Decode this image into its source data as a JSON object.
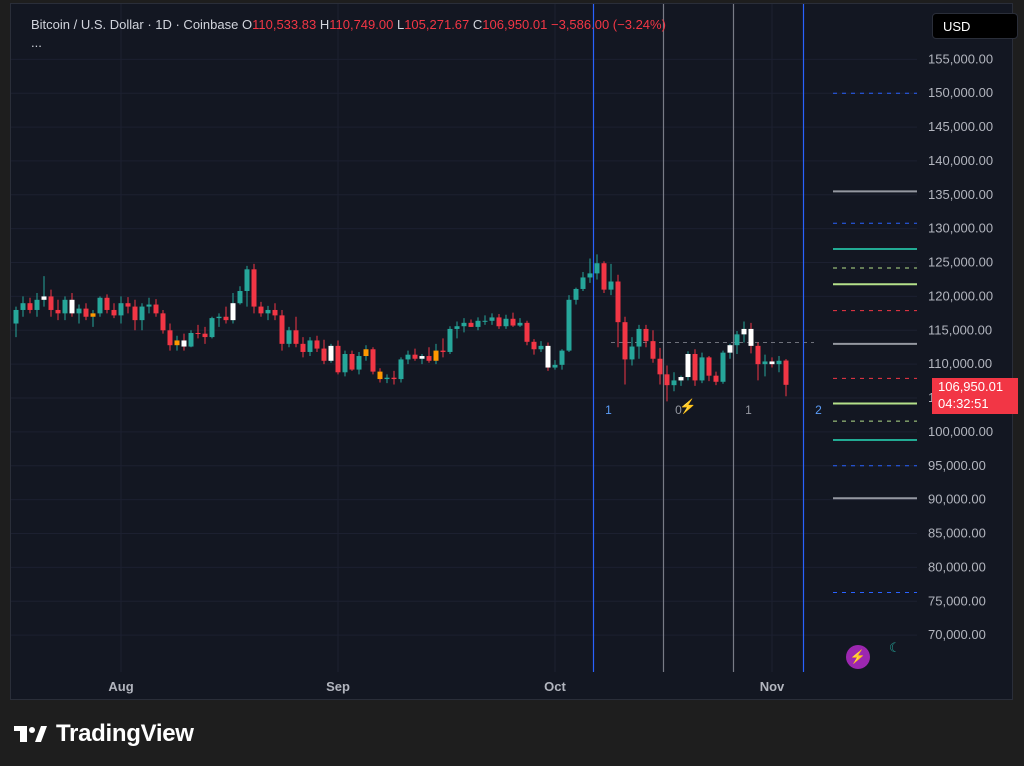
{
  "legend": {
    "symbol": "Bitcoin / U.S. Dollar · 1D · Coinbase",
    "open_label": "O",
    "open": "110,533.83",
    "high_label": "H",
    "high": "110,749.00",
    "low_label": "L",
    "low": "105,271.67",
    "close_label": "C",
    "close": "106,950.01",
    "change": "−3,586.00 (−3.24%)",
    "more": "..."
  },
  "currency": "USD",
  "price_badge": {
    "price": "106,950.01",
    "countdown": "04:32:51"
  },
  "footer": {
    "brand": "TradingView"
  },
  "icons": {
    "lightning": "lightning-icon",
    "moon": "moon-icon",
    "event_badge": "event-badge-icon"
  },
  "colors": {
    "up": "#26a69a",
    "down": "#f23645",
    "background": "#131722",
    "grid": "#1c2030",
    "text": "#b2b5be",
    "blue_line": "#2962ff",
    "gray_line": "#787b86",
    "orange": "#ff9800",
    "white_candle": "#ffffff",
    "lime": "#b4e08a",
    "teal": "#22ab94"
  },
  "chart_data": {
    "type": "candlestick",
    "title": "Bitcoin / U.S. Dollar · 1D · Coinbase",
    "xlabel": "",
    "ylabel": "",
    "ylim": [
      65000,
      158000
    ],
    "grid": true,
    "x_tick_labels": [
      "Aug",
      "Sep",
      "Oct",
      "Nov"
    ],
    "x_tick_index": [
      15,
      46,
      77,
      108
    ],
    "y_ticks": [
      70000,
      75000,
      80000,
      85000,
      90000,
      95000,
      100000,
      105000,
      110000,
      115000,
      120000,
      125000,
      130000,
      135000,
      140000,
      145000,
      150000,
      155000
    ],
    "y_tick_labels": [
      "70,000.00",
      "75,000.00",
      "80,000.00",
      "85,000.00",
      "90,000.00",
      "95,000.00",
      "100,000.00",
      "105,000.00",
      "110,000.00",
      "115,000.00",
      "120,000.00",
      "125,000.00",
      "130,000.00",
      "135,000.00",
      "140,000.00",
      "145,000.00",
      "150,000.00",
      "155,000.00"
    ],
    "candles": [
      [
        116000,
        118500,
        114000,
        118000
      ],
      [
        118000,
        120000,
        117000,
        119000
      ],
      [
        119000,
        119800,
        117500,
        118000
      ],
      [
        118000,
        120500,
        117000,
        119500
      ],
      [
        119500,
        123000,
        118500,
        120000
      ],
      [
        120000,
        121000,
        117000,
        118000
      ],
      [
        118000,
        119500,
        116500,
        117500
      ],
      [
        117500,
        120000,
        116500,
        119500
      ],
      [
        119500,
        120500,
        117000,
        117500
      ],
      [
        117500,
        118800,
        116000,
        118200
      ],
      [
        118200,
        119000,
        116500,
        117000
      ],
      [
        117000,
        118000,
        115500,
        117500
      ],
      [
        117500,
        120000,
        117000,
        119800
      ],
      [
        119800,
        120300,
        117500,
        118000
      ],
      [
        118000,
        119000,
        116800,
        117200
      ],
      [
        117200,
        120000,
        116000,
        119000
      ],
      [
        119000,
        119900,
        117500,
        118500
      ],
      [
        118500,
        119500,
        115000,
        116500
      ],
      [
        116500,
        119000,
        115000,
        118500
      ],
      [
        118500,
        119800,
        117500,
        118800
      ],
      [
        118800,
        119600,
        117000,
        117500
      ],
      [
        117500,
        118000,
        114500,
        115000
      ],
      [
        115000,
        116000,
        112000,
        112800
      ],
      [
        112800,
        114200,
        112000,
        113500
      ],
      [
        113500,
        114500,
        112000,
        112600
      ],
      [
        112600,
        115000,
        112500,
        114600
      ],
      [
        114600,
        115800,
        113800,
        114500
      ],
      [
        114500,
        115500,
        113000,
        114000
      ],
      [
        114000,
        117000,
        113800,
        116800
      ],
      [
        116800,
        117500,
        115500,
        117000
      ],
      [
        117000,
        118500,
        116000,
        116500
      ],
      [
        116500,
        120500,
        116000,
        119000
      ],
      [
        119000,
        121500,
        118800,
        120800
      ],
      [
        120800,
        124500,
        118500,
        124000
      ],
      [
        124000,
        124800,
        117500,
        118500
      ],
      [
        118500,
        119200,
        117000,
        117500
      ],
      [
        117500,
        118600,
        116500,
        118000
      ],
      [
        118000,
        119000,
        116500,
        117200
      ],
      [
        117200,
        118000,
        112000,
        113000
      ],
      [
        113000,
        115500,
        112500,
        115000
      ],
      [
        115000,
        117000,
        112500,
        113000
      ],
      [
        113000,
        114000,
        111000,
        111800
      ],
      [
        111800,
        114000,
        111200,
        113500
      ],
      [
        113500,
        114200,
        111800,
        112300
      ],
      [
        112300,
        113600,
        110000,
        110500
      ],
      [
        110500,
        113000,
        110200,
        112700
      ],
      [
        112700,
        113500,
        108500,
        108800
      ],
      [
        108800,
        112000,
        108200,
        111500
      ],
      [
        111500,
        112000,
        109000,
        109200
      ],
      [
        109200,
        111800,
        108500,
        111200
      ],
      [
        111200,
        112800,
        110500,
        112200
      ],
      [
        112200,
        112500,
        108500,
        108900
      ],
      [
        108900,
        109400,
        107300,
        107800
      ],
      [
        107800,
        108500,
        107200,
        108000
      ],
      [
        108000,
        109000,
        107000,
        107800
      ],
      [
        107800,
        111000,
        107300,
        110700
      ],
      [
        110700,
        112000,
        110000,
        111400
      ],
      [
        111400,
        112300,
        110500,
        110800
      ],
      [
        110800,
        111500,
        110000,
        111200
      ],
      [
        111200,
        112500,
        110200,
        110500
      ],
      [
        110500,
        113000,
        110000,
        112000
      ],
      [
        112000,
        113800,
        111000,
        111800
      ],
      [
        111800,
        115600,
        111500,
        115200
      ],
      [
        115200,
        116300,
        113800,
        115600
      ],
      [
        115600,
        116800,
        114700,
        116100
      ],
      [
        116100,
        116600,
        115500,
        115500
      ],
      [
        115500,
        116900,
        115000,
        116400
      ],
      [
        116400,
        117200,
        115800,
        116400
      ],
      [
        116400,
        117500,
        115800,
        116900
      ],
      [
        116900,
        117400,
        115200,
        115600
      ],
      [
        115600,
        117300,
        115200,
        116700
      ],
      [
        116700,
        117600,
        115500,
        115700
      ],
      [
        115700,
        116800,
        115500,
        116100
      ],
      [
        116100,
        116400,
        112800,
        113300
      ],
      [
        113300,
        113700,
        111400,
        112200
      ],
      [
        112200,
        113400,
        111800,
        112700
      ],
      [
        112700,
        113200,
        109000,
        109500
      ],
      [
        109500,
        110600,
        109200,
        109900
      ],
      [
        109900,
        112200,
        109200,
        112000
      ],
      [
        112000,
        120200,
        111800,
        119500
      ],
      [
        119500,
        121300,
        118800,
        121100
      ],
      [
        121100,
        123600,
        120800,
        122800
      ],
      [
        122800,
        125600,
        122000,
        123400
      ],
      [
        123400,
        126200,
        122500,
        124900
      ],
      [
        124900,
        125200,
        120500,
        121000
      ],
      [
        121000,
        124800,
        120200,
        122200
      ],
      [
        122200,
        123200,
        112500,
        116200
      ],
      [
        116200,
        117000,
        107000,
        110700
      ],
      [
        110700,
        114000,
        109800,
        112600
      ],
      [
        112600,
        115800,
        110800,
        115200
      ],
      [
        115200,
        115800,
        112500,
        113400
      ],
      [
        113400,
        115000,
        110200,
        110800
      ],
      [
        110800,
        112400,
        107000,
        108500
      ],
      [
        108500,
        109800,
        104500,
        106900
      ],
      [
        106900,
        108800,
        106000,
        107600
      ],
      [
        107600,
        108300,
        106800,
        108100
      ],
      [
        108100,
        111900,
        107600,
        111500
      ],
      [
        111500,
        112200,
        106800,
        107600
      ],
      [
        107600,
        111700,
        107200,
        111000
      ],
      [
        111000,
        111200,
        107500,
        108300
      ],
      [
        108300,
        108900,
        106900,
        107400
      ],
      [
        107400,
        112000,
        107100,
        111700
      ],
      [
        111700,
        113000,
        110800,
        112800
      ],
      [
        112800,
        114900,
        111500,
        114400
      ],
      [
        114400,
        116300,
        113200,
        115200
      ],
      [
        115200,
        116100,
        111600,
        112700
      ],
      [
        112700,
        113200,
        107600,
        110000
      ],
      [
        110000,
        111400,
        108200,
        110400
      ],
      [
        110400,
        111000,
        109500,
        110000
      ],
      [
        110000,
        111200,
        108800,
        110500
      ],
      [
        110533.83,
        110749.0,
        105271.67,
        106950.01
      ]
    ],
    "candle_color_overrides": {
      "4": "#ffffff",
      "8": "#ffffff",
      "11": "#ff9800",
      "23": "#ff9800",
      "24": "#ffffff",
      "31": "#ffffff",
      "45": "#ffffff",
      "50": "#ff9800",
      "52": "#ff9800",
      "58": "#ffffff",
      "60": "#ff9800",
      "76": "#ffffff",
      "95": "#ffffff",
      "96": "#ffffff",
      "102": "#ffffff",
      "104": "#ffffff",
      "105": "#ffffff",
      "108": "#ffffff"
    },
    "current_price": 106950.01,
    "reference_line": 113200,
    "vertical_lines": [
      {
        "index": 82.5,
        "color": "#2962ff",
        "label": "1"
      },
      {
        "index": 92.5,
        "color": "#787b86",
        "label": "0"
      },
      {
        "index": 102.5,
        "color": "#787b86",
        "label": "1"
      },
      {
        "index": 112.5,
        "color": "#2962ff",
        "label": "2"
      }
    ],
    "level_lines": [
      {
        "price": 150000,
        "color": "#2962ff",
        "style": "dashed"
      },
      {
        "price": 135500,
        "color": "#9598a1",
        "style": "solid"
      },
      {
        "price": 130800,
        "color": "#2962ff",
        "style": "dashed"
      },
      {
        "price": 127000,
        "color": "#22ab94",
        "style": "solid"
      },
      {
        "price": 124200,
        "color": "#b4e08a",
        "style": "dashed"
      },
      {
        "price": 121800,
        "color": "#b4e08a",
        "style": "solid"
      },
      {
        "price": 117900,
        "color": "#f23645",
        "style": "dashed"
      },
      {
        "price": 113000,
        "color": "#9598a1",
        "style": "solid"
      },
      {
        "price": 107900,
        "color": "#f23645",
        "style": "dashed"
      },
      {
        "price": 104200,
        "color": "#b4e08a",
        "style": "solid"
      },
      {
        "price": 101600,
        "color": "#b4e08a",
        "style": "dashed"
      },
      {
        "price": 98800,
        "color": "#22ab94",
        "style": "solid"
      },
      {
        "price": 95000,
        "color": "#2962ff",
        "style": "dashed"
      },
      {
        "price": 90200,
        "color": "#9598a1",
        "style": "solid"
      },
      {
        "price": 76300,
        "color": "#2962ff",
        "style": "dashed"
      }
    ]
  }
}
